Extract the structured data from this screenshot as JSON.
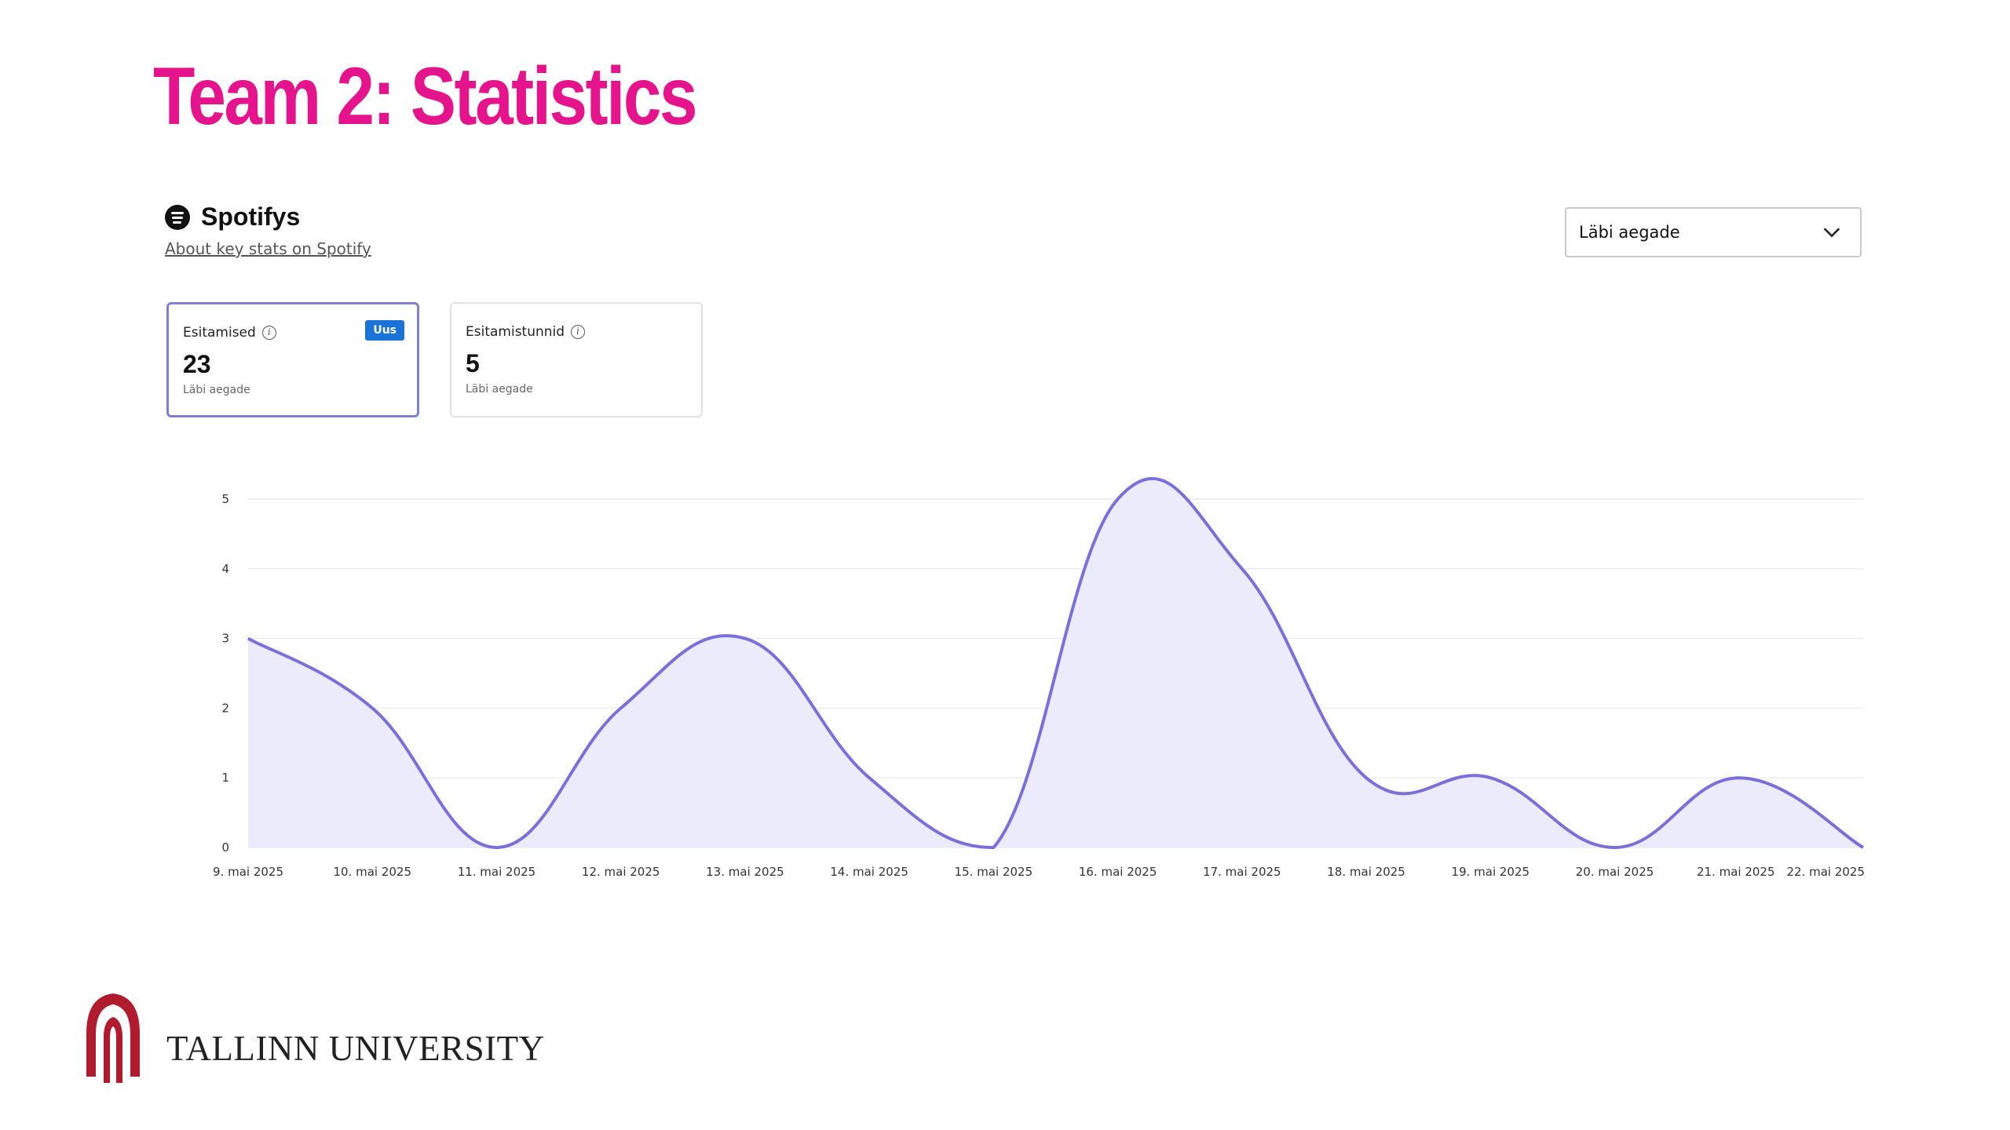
{
  "slide": {
    "title": "Team 2: Statistics",
    "footer_text": "TALLINN UNIVERSITY",
    "title_color": "#e6148c",
    "logo_color": "#b01c2e"
  },
  "app": {
    "name": "Spotifys",
    "about_link": "About key stats on Spotify",
    "logo_icon": "spotify-icon"
  },
  "period_select": {
    "selected": "Läbi aegade",
    "icon": "chevron-down-icon"
  },
  "cards": [
    {
      "title": "Esitamised",
      "badge": "Uus",
      "value": "23",
      "subtitle": "Läbi aegade",
      "selected": true
    },
    {
      "title": "Esitamistunnid",
      "value": "5",
      "subtitle": "Läbi aegade",
      "selected": false
    }
  ],
  "chart_data": {
    "type": "area",
    "x": [
      "9. mai 2025",
      "10. mai 2025",
      "11. mai 2025",
      "12. mai 2025",
      "13. mai 2025",
      "14. mai 2025",
      "15. mai 2025",
      "16. mai 2025",
      "17. mai 2025",
      "18. mai 2025",
      "19. mai 2025",
      "20. mai 2025",
      "21. mai 2025",
      "22. mai 2025"
    ],
    "values": [
      3,
      2,
      0,
      2,
      3,
      1,
      0,
      5,
      4,
      1,
      1,
      0,
      1,
      0
    ],
    "yticks": [
      0,
      1,
      2,
      3,
      4,
      5
    ],
    "ylim": [
      0,
      5
    ],
    "grid": true,
    "line_color": "#7b6fdb",
    "fill_color": "#ecebfb"
  }
}
